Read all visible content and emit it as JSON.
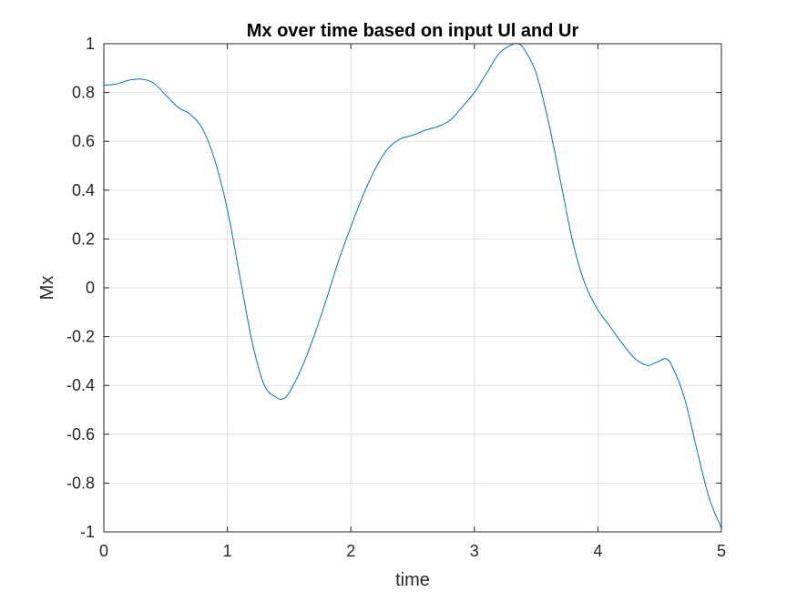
{
  "chart_data": {
    "type": "line",
    "title": "Mx over time based on input Ul and Ur",
    "xlabel": "time",
    "ylabel": "Mx",
    "xlim": [
      0,
      5
    ],
    "ylim": [
      -1,
      1
    ],
    "xticks": [
      0,
      1,
      2,
      3,
      4,
      5
    ],
    "xtick_labels": [
      "0",
      "1",
      "2",
      "3",
      "4",
      "5"
    ],
    "yticks": [
      -1,
      -0.8,
      -0.6,
      -0.4,
      -0.2,
      0,
      0.2,
      0.4,
      0.6,
      0.8,
      1
    ],
    "ytick_labels": [
      "-1",
      "-0.8",
      "-0.6",
      "-0.4",
      "-0.2",
      "0",
      "0.2",
      "0.4",
      "0.6",
      "0.8",
      "1"
    ],
    "grid": true,
    "box": true,
    "series": [
      {
        "color": "#0072BD",
        "x": [
          0,
          0.1,
          0.2,
          0.3,
          0.4,
          0.5,
          0.6,
          0.7,
          0.8,
          0.9,
          1.0,
          1.1,
          1.2,
          1.3,
          1.4,
          1.45,
          1.5,
          1.6,
          1.7,
          1.8,
          1.9,
          2.0,
          2.1,
          2.2,
          2.3,
          2.4,
          2.5,
          2.6,
          2.7,
          2.8,
          2.9,
          3.0,
          3.1,
          3.2,
          3.3,
          3.35,
          3.4,
          3.5,
          3.6,
          3.7,
          3.8,
          3.9,
          4.0,
          4.1,
          4.2,
          4.3,
          4.4,
          4.45,
          4.5,
          4.55,
          4.6,
          4.7,
          4.8,
          4.9,
          5.0
        ],
        "y": [
          0.83,
          0.835,
          0.85,
          0.855,
          0.84,
          0.79,
          0.74,
          0.71,
          0.65,
          0.52,
          0.32,
          0.05,
          -0.22,
          -0.4,
          -0.45,
          -0.455,
          -0.43,
          -0.33,
          -0.2,
          -0.05,
          0.11,
          0.25,
          0.38,
          0.49,
          0.57,
          0.61,
          0.625,
          0.645,
          0.66,
          0.685,
          0.74,
          0.8,
          0.88,
          0.96,
          0.995,
          1.0,
          0.98,
          0.88,
          0.68,
          0.43,
          0.18,
          0.01,
          -0.09,
          -0.16,
          -0.23,
          -0.29,
          -0.318,
          -0.31,
          -0.3,
          -0.29,
          -0.32,
          -0.45,
          -0.66,
          -0.86,
          -0.985
        ]
      }
    ]
  }
}
